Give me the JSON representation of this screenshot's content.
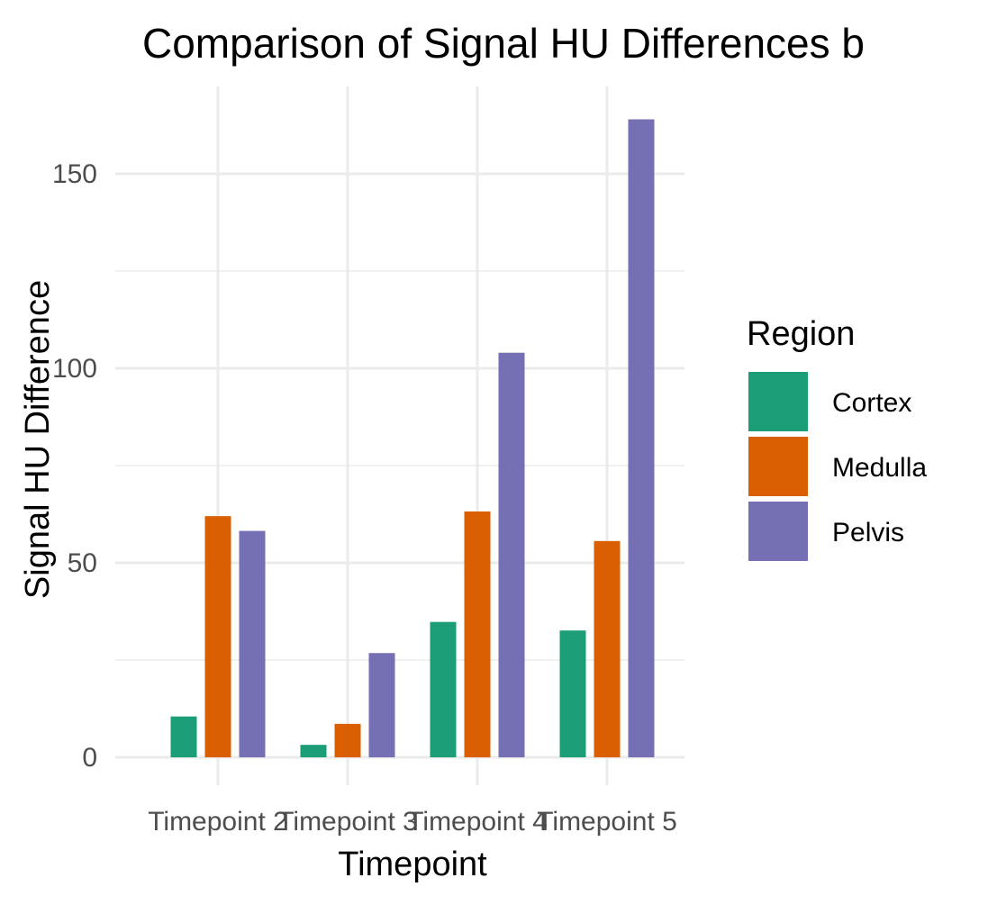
{
  "chart_data": {
    "type": "bar",
    "title": "Comparison of Signal HU Differences b",
    "xlabel": "Timepoint",
    "ylabel": "Signal HU Difference",
    "categories": [
      "Timepoint 2",
      "Timepoint 3",
      "Timepoint 4",
      "Timepoint 5"
    ],
    "series": [
      {
        "name": "Cortex",
        "color": "#1b9e77",
        "values": [
          10.5,
          3.2,
          34.8,
          32.6
        ]
      },
      {
        "name": "Medulla",
        "color": "#d95f02",
        "values": [
          62.0,
          8.6,
          63.2,
          55.6
        ]
      },
      {
        "name": "Pelvis",
        "color": "#7570b3",
        "values": [
          58.2,
          26.8,
          104.0,
          164.0
        ]
      }
    ],
    "ylim": [
      -7,
      168
    ],
    "yticks": [
      0,
      50,
      100,
      150
    ],
    "grid": true,
    "legend": {
      "title": "Region",
      "placement": "right"
    }
  }
}
